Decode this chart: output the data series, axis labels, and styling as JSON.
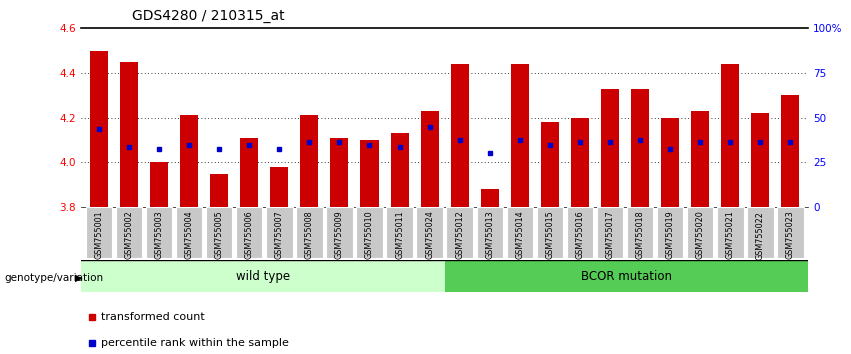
{
  "title": "GDS4280 / 210315_at",
  "samples": [
    "GSM755001",
    "GSM755002",
    "GSM755003",
    "GSM755004",
    "GSM755005",
    "GSM755006",
    "GSM755007",
    "GSM755008",
    "GSM755009",
    "GSM755010",
    "GSM755011",
    "GSM755024",
    "GSM755012",
    "GSM755013",
    "GSM755014",
    "GSM755015",
    "GSM755016",
    "GSM755017",
    "GSM755018",
    "GSM755019",
    "GSM755020",
    "GSM755021",
    "GSM755022",
    "GSM755023"
  ],
  "red_values": [
    4.5,
    4.45,
    4.0,
    4.21,
    3.95,
    4.11,
    3.98,
    4.21,
    4.11,
    4.1,
    4.13,
    4.23,
    4.44,
    3.88,
    4.44,
    4.18,
    4.2,
    4.33,
    4.33,
    4.2,
    4.23,
    4.44,
    4.22,
    4.3
  ],
  "blue_values": [
    4.15,
    4.07,
    4.06,
    4.08,
    4.06,
    4.08,
    4.06,
    4.09,
    4.09,
    4.08,
    4.07,
    4.16,
    4.1,
    4.04,
    4.1,
    4.08,
    4.09,
    4.09,
    4.1,
    4.06,
    4.09,
    4.09,
    4.09,
    4.09
  ],
  "ymin": 3.8,
  "ymax": 4.6,
  "yticks_left": [
    3.8,
    4.0,
    4.2,
    4.4,
    4.6
  ],
  "right_pct": [
    0,
    25,
    50,
    75,
    100
  ],
  "right_labels": [
    "0",
    "25",
    "50",
    "75",
    "100%"
  ],
  "wild_type_count": 12,
  "bcor_count": 12,
  "wild_type_label": "wild type",
  "bcor_label": "BCOR mutation",
  "group_label": "genotype/variation",
  "legend_red": "transformed count",
  "legend_blue": "percentile rank within the sample",
  "bar_color": "#cc0000",
  "blue_color": "#0000cc",
  "wild_bg": "#ccffcc",
  "bcor_bg": "#55cc55",
  "xtick_bg": "#c8c8c8",
  "grid_color": "#000000"
}
